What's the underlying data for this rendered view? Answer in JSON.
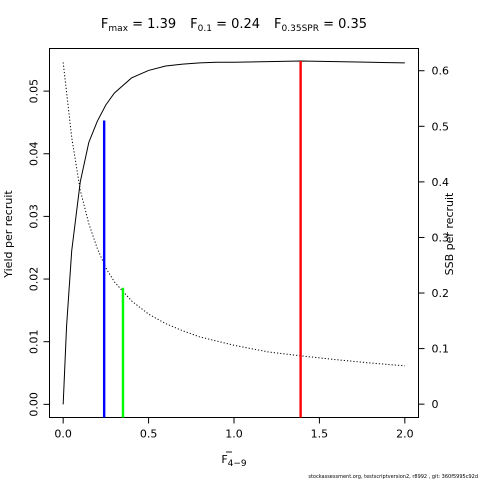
{
  "title": {
    "parts": [
      {
        "main": "F",
        "sub": "max",
        "value": " = 1.39"
      },
      {
        "main": "F",
        "sub": "0.1",
        "value": " = 0.24"
      },
      {
        "main": "F",
        "sub": "0.35SPR",
        "value": " = 0.35"
      }
    ]
  },
  "footer": "stockassessment.org, testscriptversion2, r8992 , git: 360f5995c92d",
  "chart_data": {
    "type": "line",
    "xlabel": {
      "main": "F",
      "sub": "4−9",
      "overline": true
    },
    "ylabel_left": "Yield per recruit",
    "ylabel_right": "SSB per recruit",
    "xlim": [
      -0.08,
      2.08
    ],
    "ylim_left": [
      -0.0021,
      0.0568
    ],
    "ylim_right": [
      -0.024,
      0.64
    ],
    "xticks": [
      0.0,
      0.5,
      1.0,
      1.5,
      2.0
    ],
    "xtick_labels": [
      "0.0",
      "0.5",
      "1.0",
      "1.5",
      "2.0"
    ],
    "yticks_left": [
      0.0,
      0.01,
      0.02,
      0.03,
      0.04,
      0.05
    ],
    "ytick_labels_left": [
      "0.00",
      "0.01",
      "0.02",
      "0.03",
      "0.04",
      "0.05"
    ],
    "yticks_right": [
      0,
      0.1,
      0.2,
      0.3,
      0.4,
      0.5,
      0.6
    ],
    "ytick_labels_right": [
      "0",
      "0.1",
      "0.2",
      "0.3",
      "0.4",
      "0.5",
      "0.6"
    ],
    "series": [
      {
        "axis": "left",
        "style": "solid",
        "color": "#000000",
        "x": [
          0,
          0.02,
          0.05,
          0.1,
          0.15,
          0.2,
          0.25,
          0.3,
          0.4,
          0.5,
          0.6,
          0.7,
          0.8,
          0.9,
          1.0,
          1.2,
          1.39,
          1.6,
          1.8,
          2.0
        ],
        "y": [
          0.0,
          0.0125,
          0.0245,
          0.0355,
          0.0418,
          0.0452,
          0.0478,
          0.0497,
          0.0521,
          0.0533,
          0.054,
          0.0543,
          0.0545,
          0.0546,
          0.0546,
          0.0547,
          0.0548,
          0.0547,
          0.0546,
          0.0545
        ]
      },
      {
        "axis": "right",
        "style": "dotted",
        "color": "#000000",
        "x": [
          0,
          0.05,
          0.1,
          0.15,
          0.2,
          0.25,
          0.3,
          0.35,
          0.4,
          0.5,
          0.6,
          0.7,
          0.8,
          1.0,
          1.2,
          1.39,
          1.6,
          1.8,
          2.0
        ],
        "y": [
          0.615,
          0.48,
          0.385,
          0.325,
          0.28,
          0.245,
          0.22,
          0.203,
          0.186,
          0.162,
          0.145,
          0.132,
          0.121,
          0.106,
          0.094,
          0.087,
          0.08,
          0.074,
          0.069
        ]
      }
    ],
    "reference_lines": [
      {
        "name": "F0.1",
        "x": 0.24,
        "y_top": 0.0453,
        "axis": "left",
        "color": "#0000ff"
      },
      {
        "name": "F0.35SPR",
        "x": 0.35,
        "y_top": 0.2095,
        "axis": "right",
        "color": "#00ff00"
      },
      {
        "name": "Fmax",
        "x": 1.39,
        "y_top": 0.0548,
        "axis": "left",
        "color": "#ff0000"
      }
    ],
    "grid": false,
    "legend": "none"
  }
}
